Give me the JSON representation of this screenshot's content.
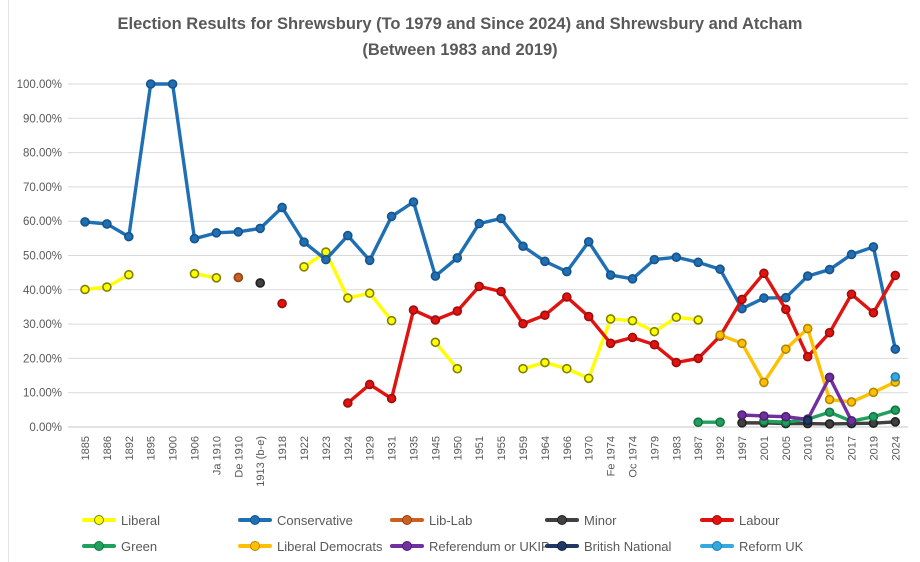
{
  "title": "Election Results for Shrewsbury (To 1979 and Since 2024) and Shrewsbury and Atcham (Between 1983 and 2019)",
  "colors": {
    "background": "#ffffff",
    "gridline": "#d9d9d9",
    "baseline": "#c6c6c6",
    "axis_text": "#595959",
    "title_text": "#595959"
  },
  "chart_data": {
    "type": "line",
    "title": "Election Results for Shrewsbury (To 1979 and Since 2024) and Shrewsbury and Atcham (Between 1983 and 2019)",
    "xlabel": "",
    "ylabel": "",
    "ylim": [
      0,
      100
    ],
    "grid": "horizontal",
    "legend_position": "bottom",
    "y_ticks": [
      {
        "value": 100,
        "label": "100.00%"
      },
      {
        "value": 90,
        "label": "90.00%"
      },
      {
        "value": 80,
        "label": "80.00%"
      },
      {
        "value": 70,
        "label": "70.00%"
      },
      {
        "value": 60,
        "label": "60.00%"
      },
      {
        "value": 50,
        "label": "50.00%"
      },
      {
        "value": 40,
        "label": "40.00%"
      },
      {
        "value": 30,
        "label": "30.00%"
      },
      {
        "value": 20,
        "label": "20.00%"
      },
      {
        "value": 10,
        "label": "10.00%"
      },
      {
        "value": 0,
        "label": "0.00%"
      }
    ],
    "categories": [
      "1885",
      "1886",
      "1892",
      "1895",
      "1900",
      "1906",
      "Ja 1910",
      "De 1910",
      "1913 (b-e)",
      "1918",
      "1922",
      "1923",
      "1924",
      "1929",
      "1931",
      "1935",
      "1945",
      "1950",
      "1951",
      "1955",
      "1959",
      "1964",
      "1966",
      "1970",
      "Fe 1974",
      "Oc 1974",
      "1979",
      "1983",
      "1987",
      "1992",
      "1997",
      "2001",
      "2005",
      "2010",
      "2015",
      "2017",
      "2019",
      "2024"
    ],
    "series": [
      {
        "name": "Liberal",
        "color": "#ffff00",
        "border": "#7f7f00",
        "values": [
          40.1,
          40.8,
          44.4,
          null,
          null,
          44.7,
          43.5,
          null,
          null,
          null,
          46.7,
          51.0,
          37.6,
          39.0,
          31.0,
          null,
          24.7,
          17.0,
          null,
          null,
          17.0,
          18.8,
          17.0,
          14.2,
          31.5,
          31.0,
          27.8,
          32.0,
          31.2,
          null,
          null,
          null,
          null,
          null,
          null,
          null,
          null,
          null
        ]
      },
      {
        "name": "Conservative",
        "color": "#1f6fb5",
        "border": "#17538a",
        "values": [
          59.8,
          59.2,
          55.5,
          100.0,
          100.0,
          54.9,
          56.6,
          56.9,
          57.9,
          64.0,
          53.9,
          48.8,
          55.8,
          48.6,
          61.4,
          65.6,
          44.0,
          49.3,
          59.3,
          60.8,
          52.7,
          48.3,
          45.3,
          54.0,
          44.3,
          43.2,
          48.8,
          49.5,
          48.0,
          46.0,
          34.5,
          37.6,
          37.7,
          44.0,
          45.9,
          50.3,
          52.5,
          22.7
        ]
      },
      {
        "name": "Lib-Lab",
        "color": "#cb6120",
        "border": "#8f441a",
        "values": [
          null,
          null,
          null,
          null,
          null,
          null,
          null,
          43.6,
          null,
          null,
          null,
          null,
          null,
          null,
          null,
          null,
          null,
          null,
          null,
          null,
          null,
          null,
          null,
          null,
          null,
          null,
          null,
          null,
          null,
          null,
          null,
          null,
          null,
          null,
          null,
          null,
          null,
          null
        ]
      },
      {
        "name": "Minor",
        "color": "#404040",
        "border": "#212121",
        "values": [
          null,
          null,
          null,
          null,
          null,
          null,
          null,
          null,
          42.0,
          null,
          null,
          null,
          null,
          null,
          null,
          null,
          null,
          null,
          null,
          null,
          null,
          null,
          null,
          null,
          null,
          null,
          null,
          null,
          null,
          null,
          1.2,
          1.2,
          1.0,
          1.0,
          0.9,
          1.0,
          1.1,
          1.5
        ]
      },
      {
        "name": "Labour",
        "color": "#e01310",
        "border": "#9e0d0b",
        "values": [
          null,
          null,
          null,
          null,
          null,
          null,
          null,
          null,
          null,
          36.0,
          null,
          null,
          7.0,
          12.4,
          8.3,
          34.1,
          31.2,
          33.8,
          41.0,
          39.5,
          30.1,
          32.6,
          37.9,
          32.2,
          24.4,
          26.1,
          24.0,
          18.8,
          20.0,
          26.5,
          37.2,
          44.8,
          34.3,
          20.5,
          27.5,
          38.7,
          33.3,
          44.2
        ]
      },
      {
        "name": "Green",
        "color": "#1fa15d",
        "border": "#157343",
        "values": [
          null,
          null,
          null,
          null,
          null,
          null,
          null,
          null,
          null,
          null,
          null,
          null,
          null,
          null,
          null,
          null,
          null,
          null,
          null,
          null,
          null,
          null,
          null,
          null,
          null,
          null,
          null,
          null,
          1.4,
          1.4,
          null,
          1.7,
          1.4,
          2.3,
          4.3,
          1.7,
          3.0,
          4.9
        ]
      },
      {
        "name": "Liberal Democrats",
        "color": "#ffc000",
        "border": "#b38600",
        "values": [
          null,
          null,
          null,
          null,
          null,
          null,
          null,
          null,
          null,
          null,
          null,
          null,
          null,
          null,
          null,
          null,
          null,
          null,
          null,
          null,
          null,
          null,
          null,
          null,
          null,
          null,
          null,
          null,
          null,
          26.8,
          24.4,
          13.0,
          22.7,
          28.7,
          8.0,
          7.3,
          10.1,
          13.1
        ]
      },
      {
        "name": "Referendum or UKIP",
        "color": "#70309f",
        "border": "#4e2170",
        "values": [
          null,
          null,
          null,
          null,
          null,
          null,
          null,
          null,
          null,
          null,
          null,
          null,
          null,
          null,
          null,
          null,
          null,
          null,
          null,
          null,
          null,
          null,
          null,
          null,
          null,
          null,
          null,
          null,
          null,
          null,
          3.5,
          3.2,
          3.0,
          2.2,
          14.5,
          1.8,
          null,
          null
        ]
      },
      {
        "name": "British National",
        "color": "#1f3864",
        "border": "#14233f",
        "values": [
          null,
          null,
          null,
          null,
          null,
          null,
          null,
          null,
          null,
          null,
          null,
          null,
          null,
          null,
          null,
          null,
          null,
          null,
          null,
          null,
          null,
          null,
          null,
          null,
          null,
          null,
          null,
          null,
          null,
          null,
          null,
          null,
          null,
          1.9,
          null,
          null,
          null,
          null
        ]
      },
      {
        "name": "Reform UK",
        "color": "#33a9e0",
        "border": "#1f7fb2",
        "values": [
          null,
          null,
          null,
          null,
          null,
          null,
          null,
          null,
          null,
          null,
          null,
          null,
          null,
          null,
          null,
          null,
          null,
          null,
          null,
          null,
          null,
          null,
          null,
          null,
          null,
          null,
          null,
          null,
          null,
          null,
          null,
          null,
          null,
          null,
          null,
          null,
          null,
          14.6
        ]
      }
    ]
  }
}
